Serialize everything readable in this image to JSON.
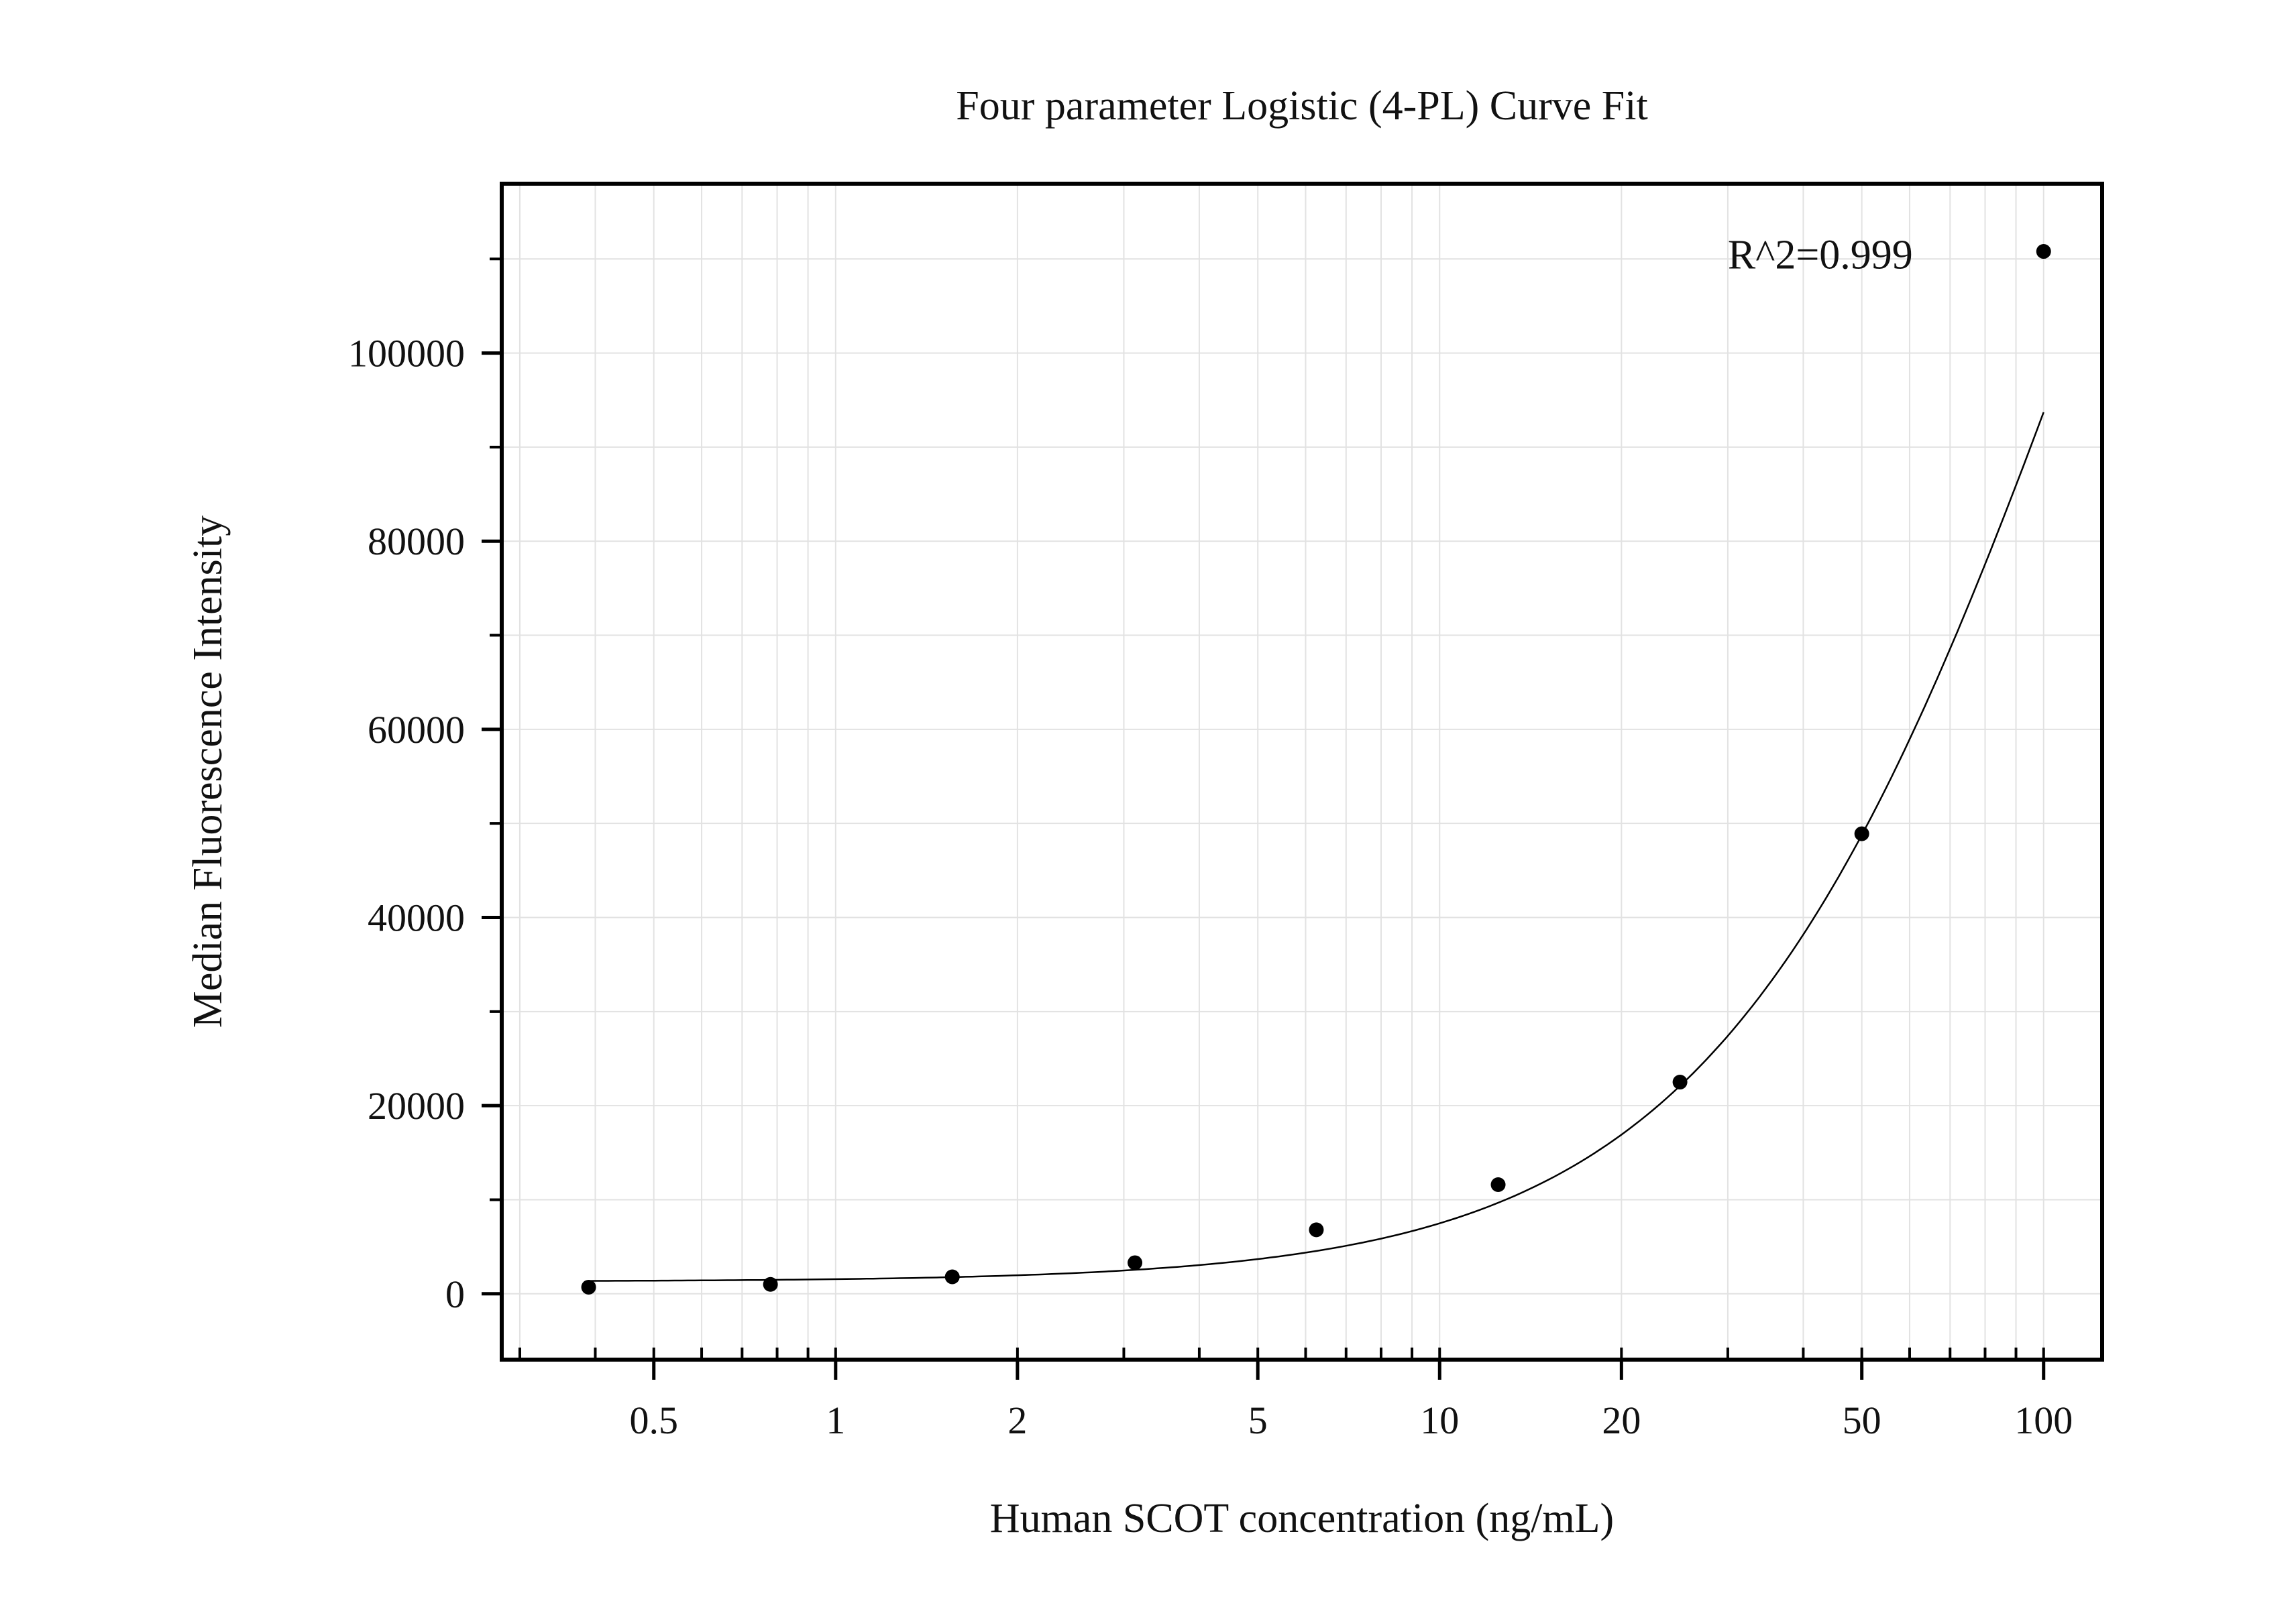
{
  "chart_data": {
    "type": "scatter",
    "title": "Four parameter Logistic (4-PL) Curve Fit",
    "xlabel": "Human SCOT concentration (ng/mL)",
    "ylabel": "Median Fluorescence Intensity",
    "x_scale": "log",
    "xlim": [
      0.28,
      125
    ],
    "ylim": [
      -7000,
      118000
    ],
    "grid": true,
    "x_ticks": [
      {
        "value": 0.5,
        "label": "0.5"
      },
      {
        "value": 1,
        "label": "1"
      },
      {
        "value": 2,
        "label": "2"
      },
      {
        "value": 5,
        "label": "5"
      },
      {
        "value": 10,
        "label": "10"
      },
      {
        "value": 20,
        "label": "20"
      },
      {
        "value": 50,
        "label": "50"
      },
      {
        "value": 100,
        "label": "100"
      }
    ],
    "y_ticks": [
      {
        "value": 0,
        "label": "0"
      },
      {
        "value": 20000,
        "label": "20000"
      },
      {
        "value": 40000,
        "label": "40000"
      },
      {
        "value": 60000,
        "label": "60000"
      },
      {
        "value": 80000,
        "label": "80000"
      },
      {
        "value": 100000,
        "label": "100000"
      }
    ],
    "series": [
      {
        "kind": "points",
        "color": "#000000",
        "x": [
          0.39,
          0.78,
          1.56,
          3.13,
          6.25,
          12.5,
          25,
          50,
          100
        ],
        "y": [
          700,
          1000,
          1800,
          3300,
          6800,
          11600,
          22500,
          48900,
          110800
        ]
      },
      {
        "kind": "fit-curve",
        "color": "#000000",
        "model": "4PL",
        "params": {
          "A": 1300,
          "B": 1.4,
          "C": 125,
          "D": 220000
        }
      }
    ],
    "annotations": [
      {
        "text": "R^2=0.999",
        "x": 30,
        "y": 109000
      }
    ]
  }
}
